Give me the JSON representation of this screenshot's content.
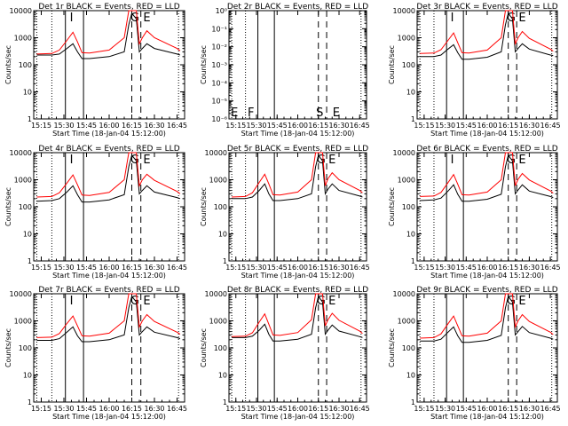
{
  "x_axis_ticks": [
    "15:15",
    "15:30",
    "15:45",
    "16:00",
    "16:15",
    "16:30",
    "16:45"
  ],
  "x_axis_label": "Start Time (18-Jan-04 15:12:00)",
  "y_axis_label": "Counts/sec",
  "colors": {
    "events": "#000000",
    "lld": "#ff0000",
    "axes": "#000000",
    "background": "#ffffff"
  },
  "chart_data": [
    {
      "type": "line",
      "title": "Det 1r  BLACK = Events, RED = LLD",
      "xlabel": "Start Time (18-Jan-04 15:12:00)",
      "ylabel": "Counts/sec",
      "ylog": true,
      "ylim": [
        1,
        10000
      ],
      "xlim": [
        "15:10",
        "16:50"
      ],
      "ytick_labels": [
        "1",
        "10",
        "100",
        "1000",
        "10000"
      ],
      "interval_letters": [
        "I",
        "G",
        "E"
      ],
      "series": [
        {
          "name": "BLACK = Events",
          "x": [
            "15:12",
            "15:22",
            "15:27",
            "15:32",
            "15:36",
            "15:39",
            "15:42",
            "15:47",
            "16:00",
            "16:10",
            "16:13",
            "16:15",
            "16:18",
            "16:20",
            "16:22",
            "16:25",
            "16:30",
            "16:45",
            "16:47"
          ],
          "values": [
            230,
            230,
            250,
            400,
            600,
            300,
            170,
            170,
            200,
            300,
            3000,
            8000,
            5000,
            300,
            400,
            600,
            400,
            250,
            230
          ]
        },
        {
          "name": "RED = LLD",
          "x": [
            "15:12",
            "15:22",
            "15:27",
            "15:32",
            "15:36",
            "15:39",
            "15:42",
            "15:47",
            "16:00",
            "16:10",
            "16:13",
            "16:15",
            "16:18",
            "16:20",
            "16:22",
            "16:25",
            "16:30",
            "16:45",
            "16:47"
          ],
          "values": [
            250,
            260,
            350,
            800,
            1600,
            700,
            280,
            270,
            350,
            1000,
            10000,
            10000,
            10000,
            600,
            1000,
            1800,
            1000,
            400,
            330
          ]
        }
      ]
    },
    {
      "type": "line",
      "title": "Det 2r  BLACK = Events, RED = LLD",
      "xlabel": "Start Time (18-Jan-04 15:12:00)",
      "ylabel": "Counts/sec",
      "ylog": true,
      "ylim": [
        1e-06,
        1
      ],
      "xlim": [
        "15:10",
        "16:50"
      ],
      "ytick_labels": [
        "10⁻⁶",
        "10⁻⁵",
        "10⁻⁴",
        "10⁻³",
        "10⁻²",
        "10⁻¹",
        "10⁰"
      ],
      "interval_letters": [
        "E",
        "F",
        "S",
        "E"
      ],
      "series": []
    },
    {
      "type": "line",
      "title": "Det 3r  BLACK = Events, RED = LLD",
      "xlabel": "Start Time (18-Jan-04 15:12:00)",
      "ylabel": "Counts/sec",
      "ylog": true,
      "ylim": [
        1,
        10000
      ],
      "xlim": [
        "15:10",
        "16:50"
      ],
      "ytick_labels": [
        "1",
        "10",
        "100",
        "1000",
        "10000"
      ],
      "interval_letters": [
        "I",
        "G",
        "E"
      ],
      "series": [
        {
          "name": "BLACK = Events",
          "x": [
            "15:12",
            "15:22",
            "15:27",
            "15:32",
            "15:36",
            "15:39",
            "15:42",
            "15:47",
            "16:00",
            "16:10",
            "16:13",
            "16:15",
            "16:18",
            "16:20",
            "16:22",
            "16:25",
            "16:30",
            "16:45",
            "16:47"
          ],
          "values": [
            200,
            200,
            230,
            380,
            550,
            280,
            160,
            160,
            190,
            300,
            3000,
            8000,
            5000,
            300,
            400,
            600,
            380,
            230,
            220
          ]
        },
        {
          "name": "RED = LLD",
          "x": [
            "15:12",
            "15:22",
            "15:27",
            "15:32",
            "15:36",
            "15:39",
            "15:42",
            "15:47",
            "16:00",
            "16:10",
            "16:13",
            "16:15",
            "16:18",
            "16:20",
            "16:22",
            "16:25",
            "16:30",
            "16:45",
            "16:47"
          ],
          "values": [
            260,
            270,
            360,
            800,
            1500,
            650,
            280,
            270,
            350,
            1000,
            10000,
            10000,
            10000,
            600,
            1000,
            1700,
            950,
            380,
            320
          ]
        }
      ]
    },
    {
      "type": "line",
      "title": "Det 4r  BLACK = Events, RED = LLD",
      "xlabel": "Start Time (18-Jan-04 15:12:00)",
      "ylabel": "Counts/sec",
      "ylog": true,
      "ylim": [
        1,
        10000
      ],
      "xlim": [
        "15:10",
        "16:50"
      ],
      "ytick_labels": [
        "1",
        "10",
        "100",
        "1000",
        "10000"
      ],
      "interval_letters": [
        "I",
        "G",
        "E"
      ],
      "series": [
        {
          "name": "BLACK = Events",
          "x": [
            "15:12",
            "15:22",
            "15:27",
            "15:32",
            "15:36",
            "15:39",
            "15:42",
            "15:47",
            "16:00",
            "16:10",
            "16:13",
            "16:15",
            "16:18",
            "16:20",
            "16:22",
            "16:25",
            "16:30",
            "16:45",
            "16:47"
          ],
          "values": [
            160,
            170,
            200,
            350,
            600,
            280,
            150,
            150,
            180,
            280,
            3000,
            8000,
            5000,
            300,
            400,
            600,
            350,
            220,
            200
          ]
        },
        {
          "name": "RED = LLD",
          "x": [
            "15:12",
            "15:22",
            "15:27",
            "15:32",
            "15:36",
            "15:39",
            "15:42",
            "15:47",
            "16:00",
            "16:10",
            "16:13",
            "16:15",
            "16:18",
            "16:20",
            "16:22",
            "16:25",
            "16:30",
            "16:45",
            "16:47"
          ],
          "values": [
            230,
            240,
            330,
            750,
            1500,
            650,
            270,
            260,
            340,
            1000,
            10000,
            10000,
            10000,
            600,
            1000,
            1600,
            950,
            370,
            300
          ]
        }
      ]
    },
    {
      "type": "line",
      "title": "Det 5r  BLACK = Events, RED = LLD",
      "xlabel": "Start Time (18-Jan-04 15:12:00)",
      "ylabel": "Counts/sec",
      "ylog": true,
      "ylim": [
        1,
        10000
      ],
      "xlim": [
        "15:10",
        "16:50"
      ],
      "ytick_labels": [
        "1",
        "10",
        "100",
        "1000",
        "10000"
      ],
      "interval_letters": [
        "G",
        "E"
      ],
      "series": [
        {
          "name": "BLACK = Events",
          "x": [
            "15:12",
            "15:22",
            "15:27",
            "15:32",
            "15:36",
            "15:39",
            "15:42",
            "15:47",
            "16:00",
            "16:10",
            "16:13",
            "16:15",
            "16:18",
            "16:20",
            "16:22",
            "16:25",
            "16:30",
            "16:45",
            "16:47"
          ],
          "values": [
            200,
            200,
            230,
            400,
            700,
            300,
            170,
            170,
            200,
            300,
            3000,
            8000,
            5000,
            300,
            450,
            700,
            400,
            250,
            230
          ]
        },
        {
          "name": "RED = LLD",
          "x": [
            "15:12",
            "15:22",
            "15:27",
            "15:32",
            "15:36",
            "15:39",
            "15:42",
            "15:47",
            "16:00",
            "16:10",
            "16:13",
            "16:15",
            "16:18",
            "16:20",
            "16:22",
            "16:25",
            "16:30",
            "16:45",
            "16:47"
          ],
          "values": [
            230,
            240,
            330,
            800,
            1600,
            700,
            280,
            270,
            350,
            1000,
            10000,
            10000,
            10000,
            600,
            1100,
            1800,
            1000,
            400,
            330
          ]
        }
      ]
    },
    {
      "type": "line",
      "title": "Det 6r  BLACK = Events, RED = LLD",
      "xlabel": "Start Time (18-Jan-04 15:12:00)",
      "ylabel": "Counts/sec",
      "ylog": true,
      "ylim": [
        1,
        10000
      ],
      "xlim": [
        "15:10",
        "16:50"
      ],
      "ytick_labels": [
        "1",
        "10",
        "100",
        "1000",
        "10000"
      ],
      "interval_letters": [
        "I",
        "G",
        "E"
      ],
      "series": [
        {
          "name": "BLACK = Events",
          "x": [
            "15:12",
            "15:22",
            "15:27",
            "15:32",
            "15:36",
            "15:39",
            "15:42",
            "15:47",
            "16:00",
            "16:10",
            "16:13",
            "16:15",
            "16:18",
            "16:20",
            "16:22",
            "16:25",
            "16:30",
            "16:45",
            "16:47"
          ],
          "values": [
            170,
            180,
            210,
            380,
            650,
            290,
            160,
            160,
            190,
            290,
            3000,
            8000,
            5000,
            300,
            420,
            650,
            380,
            240,
            220
          ]
        },
        {
          "name": "RED = LLD",
          "x": [
            "15:12",
            "15:22",
            "15:27",
            "15:32",
            "15:36",
            "15:39",
            "15:42",
            "15:47",
            "16:00",
            "16:10",
            "16:13",
            "16:15",
            "16:18",
            "16:20",
            "16:22",
            "16:25",
            "16:30",
            "16:45",
            "16:47"
          ],
          "values": [
            240,
            250,
            340,
            780,
            1550,
            680,
            280,
            270,
            350,
            1000,
            10000,
            10000,
            10000,
            600,
            1050,
            1700,
            980,
            390,
            320
          ]
        }
      ]
    },
    {
      "type": "line",
      "title": "Det 7r  BLACK = Events, RED = LLD",
      "xlabel": "Start Time (18-Jan-04 15:12:00)",
      "ylabel": "Counts/sec",
      "ylog": true,
      "ylim": [
        1,
        10000
      ],
      "xlim": [
        "15:10",
        "16:50"
      ],
      "ytick_labels": [
        "1",
        "10",
        "100",
        "1000",
        "10000"
      ],
      "interval_letters": [
        "I",
        "G",
        "E"
      ],
      "series": [
        {
          "name": "BLACK = Events",
          "x": [
            "15:12",
            "15:22",
            "15:27",
            "15:32",
            "15:36",
            "15:39",
            "15:42",
            "15:47",
            "16:00",
            "16:10",
            "16:13",
            "16:15",
            "16:18",
            "16:20",
            "16:22",
            "16:25",
            "16:30",
            "16:45",
            "16:47"
          ],
          "values": [
            190,
            190,
            220,
            380,
            600,
            280,
            170,
            170,
            200,
            300,
            3000,
            8000,
            5000,
            300,
            400,
            600,
            380,
            240,
            220
          ]
        },
        {
          "name": "RED = LLD",
          "x": [
            "15:12",
            "15:22",
            "15:27",
            "15:32",
            "15:36",
            "15:39",
            "15:42",
            "15:47",
            "16:00",
            "16:10",
            "16:13",
            "16:15",
            "16:18",
            "16:20",
            "16:22",
            "16:25",
            "16:30",
            "16:45",
            "16:47"
          ],
          "values": [
            240,
            250,
            340,
            800,
            1500,
            650,
            280,
            270,
            350,
            1000,
            10000,
            10000,
            10000,
            600,
            1000,
            1700,
            950,
            380,
            320
          ]
        }
      ]
    },
    {
      "type": "line",
      "title": "Det 8r  BLACK = Events, RED = LLD",
      "xlabel": "Start Time (18-Jan-04 15:12:00)",
      "ylabel": "Counts/sec",
      "ylog": true,
      "ylim": [
        1,
        10000
      ],
      "xlim": [
        "15:10",
        "16:50"
      ],
      "ytick_labels": [
        "1",
        "10",
        "100",
        "1000",
        "10000"
      ],
      "interval_letters": [
        "G",
        "E"
      ],
      "series": [
        {
          "name": "BLACK = Events",
          "x": [
            "15:12",
            "15:22",
            "15:27",
            "15:32",
            "15:36",
            "15:39",
            "15:42",
            "15:47",
            "16:00",
            "16:10",
            "16:13",
            "16:15",
            "16:18",
            "16:20",
            "16:22",
            "16:25",
            "16:30",
            "16:45",
            "16:47"
          ],
          "values": [
            240,
            240,
            270,
            450,
            750,
            320,
            180,
            180,
            210,
            320,
            3000,
            8000,
            5000,
            320,
            450,
            700,
            420,
            260,
            240
          ]
        },
        {
          "name": "RED = LLD",
          "x": [
            "15:12",
            "15:22",
            "15:27",
            "15:32",
            "15:36",
            "15:39",
            "15:42",
            "15:47",
            "16:00",
            "16:10",
            "16:13",
            "16:15",
            "16:18",
            "16:20",
            "16:22",
            "16:25",
            "16:30",
            "16:45",
            "16:47"
          ],
          "values": [
            260,
            270,
            360,
            900,
            1800,
            750,
            300,
            290,
            370,
            1100,
            10000,
            10000,
            10000,
            650,
            1100,
            1900,
            1050,
            420,
            340
          ]
        }
      ]
    },
    {
      "type": "line",
      "title": "Det 9r  BLACK = Events, RED = LLD",
      "xlabel": "Start Time (18-Jan-04 15:12:00)",
      "ylabel": "Counts/sec",
      "ylog": true,
      "ylim": [
        1,
        10000
      ],
      "xlim": [
        "15:10",
        "16:50"
      ],
      "ytick_labels": [
        "1",
        "10",
        "100",
        "1000",
        "10000"
      ],
      "interval_letters": [
        "G",
        "E"
      ],
      "series": [
        {
          "name": "BLACK = Events",
          "x": [
            "15:12",
            "15:22",
            "15:27",
            "15:32",
            "15:36",
            "15:39",
            "15:42",
            "15:47",
            "16:00",
            "16:10",
            "16:13",
            "16:15",
            "16:18",
            "16:20",
            "16:22",
            "16:25",
            "16:30",
            "16:45",
            "16:47"
          ],
          "values": [
            180,
            180,
            210,
            380,
            600,
            280,
            160,
            160,
            190,
            290,
            3000,
            8000,
            5000,
            300,
            400,
            620,
            370,
            230,
            210
          ]
        },
        {
          "name": "RED = LLD",
          "x": [
            "15:12",
            "15:22",
            "15:27",
            "15:32",
            "15:36",
            "15:39",
            "15:42",
            "15:47",
            "16:00",
            "16:10",
            "16:13",
            "16:15",
            "16:18",
            "16:20",
            "16:22",
            "16:25",
            "16:30",
            "16:45",
            "16:47"
          ],
          "values": [
            230,
            240,
            330,
            780,
            1500,
            650,
            280,
            270,
            350,
            1000,
            10000,
            10000,
            10000,
            600,
            1000,
            1700,
            950,
            380,
            310
          ]
        }
      ]
    }
  ]
}
